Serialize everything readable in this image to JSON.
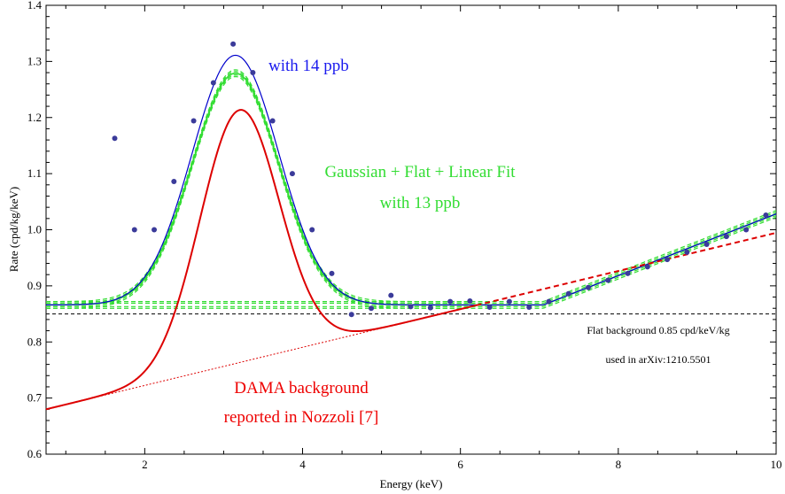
{
  "chart_data": {
    "type": "scatter",
    "title": "",
    "xlabel": "Energy (keV)",
    "ylabel": "Rate (cpd/kg/keV)",
    "xlim": [
      0.75,
      10
    ],
    "ylim": [
      0.6,
      1.4
    ],
    "x_ticks": [
      "2",
      "4",
      "6",
      "8",
      "10"
    ],
    "y_ticks": [
      "0.6",
      "0.7",
      "0.8",
      "0.9",
      "1.0",
      "1.1",
      "1.2",
      "1.3",
      "1.4"
    ],
    "grid": false,
    "colors": {
      "data_points": "#3b3b9a",
      "fit_14ppb": "#0000cc",
      "fit_13ppb": "#33dd33",
      "dama": "#dd0000",
      "flat": "#000000"
    },
    "series": [
      {
        "kind": "points",
        "x": [
          1.62,
          1.87,
          2.12,
          2.37,
          2.62,
          2.87,
          3.12,
          3.37,
          3.62,
          3.87,
          4.12,
          4.37,
          4.62,
          4.87,
          5.12,
          5.37,
          5.62,
          5.87,
          6.12,
          6.37,
          6.62,
          6.87,
          7.12,
          7.37,
          7.62,
          7.87,
          8.12,
          8.37,
          8.62,
          8.87,
          9.12,
          9.37,
          9.62,
          9.87
        ],
        "y": [
          1.163,
          1.0,
          1.0,
          1.086,
          1.194,
          1.262,
          1.331,
          1.28,
          1.194,
          1.1,
          1.0,
          0.922,
          0.849,
          0.86,
          0.883,
          0.863,
          0.861,
          0.872,
          0.873,
          0.862,
          0.872,
          0.862,
          0.872,
          0.886,
          0.897,
          0.91,
          0.922,
          0.934,
          0.947,
          0.96,
          0.974,
          0.988,
          1.0,
          1.026
        ]
      },
      {
        "kind": "model",
        "name": "with 14 ppb",
        "flat": 0.866,
        "amp": 0.445,
        "mu": 3.15,
        "sigma": 0.55,
        "linear_start": 7.05,
        "slope": 0.055
      },
      {
        "kind": "model",
        "name": "Gaussian + Flat + Linear Fit with 13 ppb",
        "flat": 0.866,
        "amp": 0.413,
        "mu": 3.15,
        "sigma": 0.55,
        "linear_start": 7.05,
        "slope": 0.055,
        "band": [
          -0.006,
          -0.003,
          0.003,
          0.006
        ]
      },
      {
        "kind": "model",
        "name": "DAMA background reported in Nozzoli [7]",
        "line0": 0.68,
        "line_slope": 0.034,
        "amp": 0.45,
        "mu": 3.2,
        "sigma": 0.5
      },
      {
        "kind": "hline",
        "name": "Flat background 0.85 cpd/keV/kg",
        "y": 0.85
      }
    ],
    "annotations": {
      "fit14": "with 14 ppb",
      "fit13_line1": "Gaussian + Flat + Linear Fit",
      "fit13_line2": "with 13 ppb",
      "dama_line1": "DAMA background",
      "dama_line2": "reported in Nozzoli [7]",
      "flat_line1": "Flat background 0.85 cpd/keV/kg",
      "flat_line2": "used in arXiv:1210.5501"
    }
  }
}
